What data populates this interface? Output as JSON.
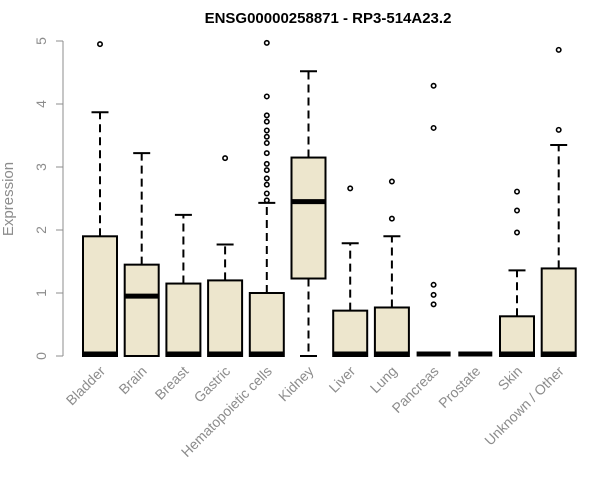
{
  "chart_data": {
    "type": "box",
    "title": "ENSG00000258871 - RP3-514A23.2",
    "xlabel": "",
    "ylabel": "Expression",
    "ylim": [
      0,
      5
    ],
    "yticks": [
      0,
      1,
      2,
      3,
      4,
      5
    ],
    "grid": false,
    "box_fill": "#ede6cd",
    "categories": [
      "Bladder",
      "Brain",
      "Breast",
      "Gastric",
      "Hematopoietic cells",
      "Kidney",
      "Liver",
      "Lung",
      "Pancreas",
      "Prostate",
      "Skin",
      "Unknown / Other"
    ],
    "boxes": [
      {
        "whisker_low": 0,
        "q1": 0,
        "median": 0,
        "q3": 1.9,
        "whisker_high": 3.87,
        "outliers": [
          4.95
        ]
      },
      {
        "whisker_low": 0,
        "q1": 0,
        "median": 0.95,
        "q3": 1.45,
        "whisker_high": 3.22,
        "outliers": []
      },
      {
        "whisker_low": 0,
        "q1": 0,
        "median": 0,
        "q3": 1.15,
        "whisker_high": 2.24,
        "outliers": []
      },
      {
        "whisker_low": 0,
        "q1": 0,
        "median": 0,
        "q3": 1.2,
        "whisker_high": 1.77,
        "outliers": [
          3.14
        ]
      },
      {
        "whisker_low": 0,
        "q1": 0,
        "median": 0,
        "q3": 1.0,
        "whisker_high": 2.43,
        "outliers": [
          2.47,
          2.58,
          2.72,
          2.82,
          2.95,
          3.05,
          3.22,
          3.38,
          3.48,
          3.58,
          3.72,
          3.82,
          4.12,
          4.97
        ]
      },
      {
        "whisker_low": 0,
        "q1": 1.23,
        "median": 2.45,
        "q3": 3.15,
        "whisker_high": 4.52,
        "outliers": []
      },
      {
        "whisker_low": 0,
        "q1": 0,
        "median": 0,
        "q3": 0.72,
        "whisker_high": 1.79,
        "outliers": [
          2.66
        ]
      },
      {
        "whisker_low": 0,
        "q1": 0,
        "median": 0,
        "q3": 0.77,
        "whisker_high": 1.9,
        "outliers": [
          2.18,
          2.77
        ]
      },
      {
        "whisker_low": 0,
        "q1": 0,
        "median": 0,
        "q3": 0,
        "whisker_high": 0,
        "outliers": [
          0.82,
          0.97,
          1.13,
          3.62,
          4.29
        ]
      },
      {
        "whisker_low": 0,
        "q1": 0,
        "median": 0,
        "q3": 0,
        "whisker_high": 0,
        "outliers": []
      },
      {
        "whisker_low": 0,
        "q1": 0,
        "median": 0,
        "q3": 0.63,
        "whisker_high": 1.36,
        "outliers": [
          1.96,
          2.31,
          2.61
        ]
      },
      {
        "whisker_low": 0,
        "q1": 0,
        "median": 0,
        "q3": 1.39,
        "whisker_high": 3.35,
        "outliers": [
          3.59,
          4.86
        ]
      }
    ]
  }
}
